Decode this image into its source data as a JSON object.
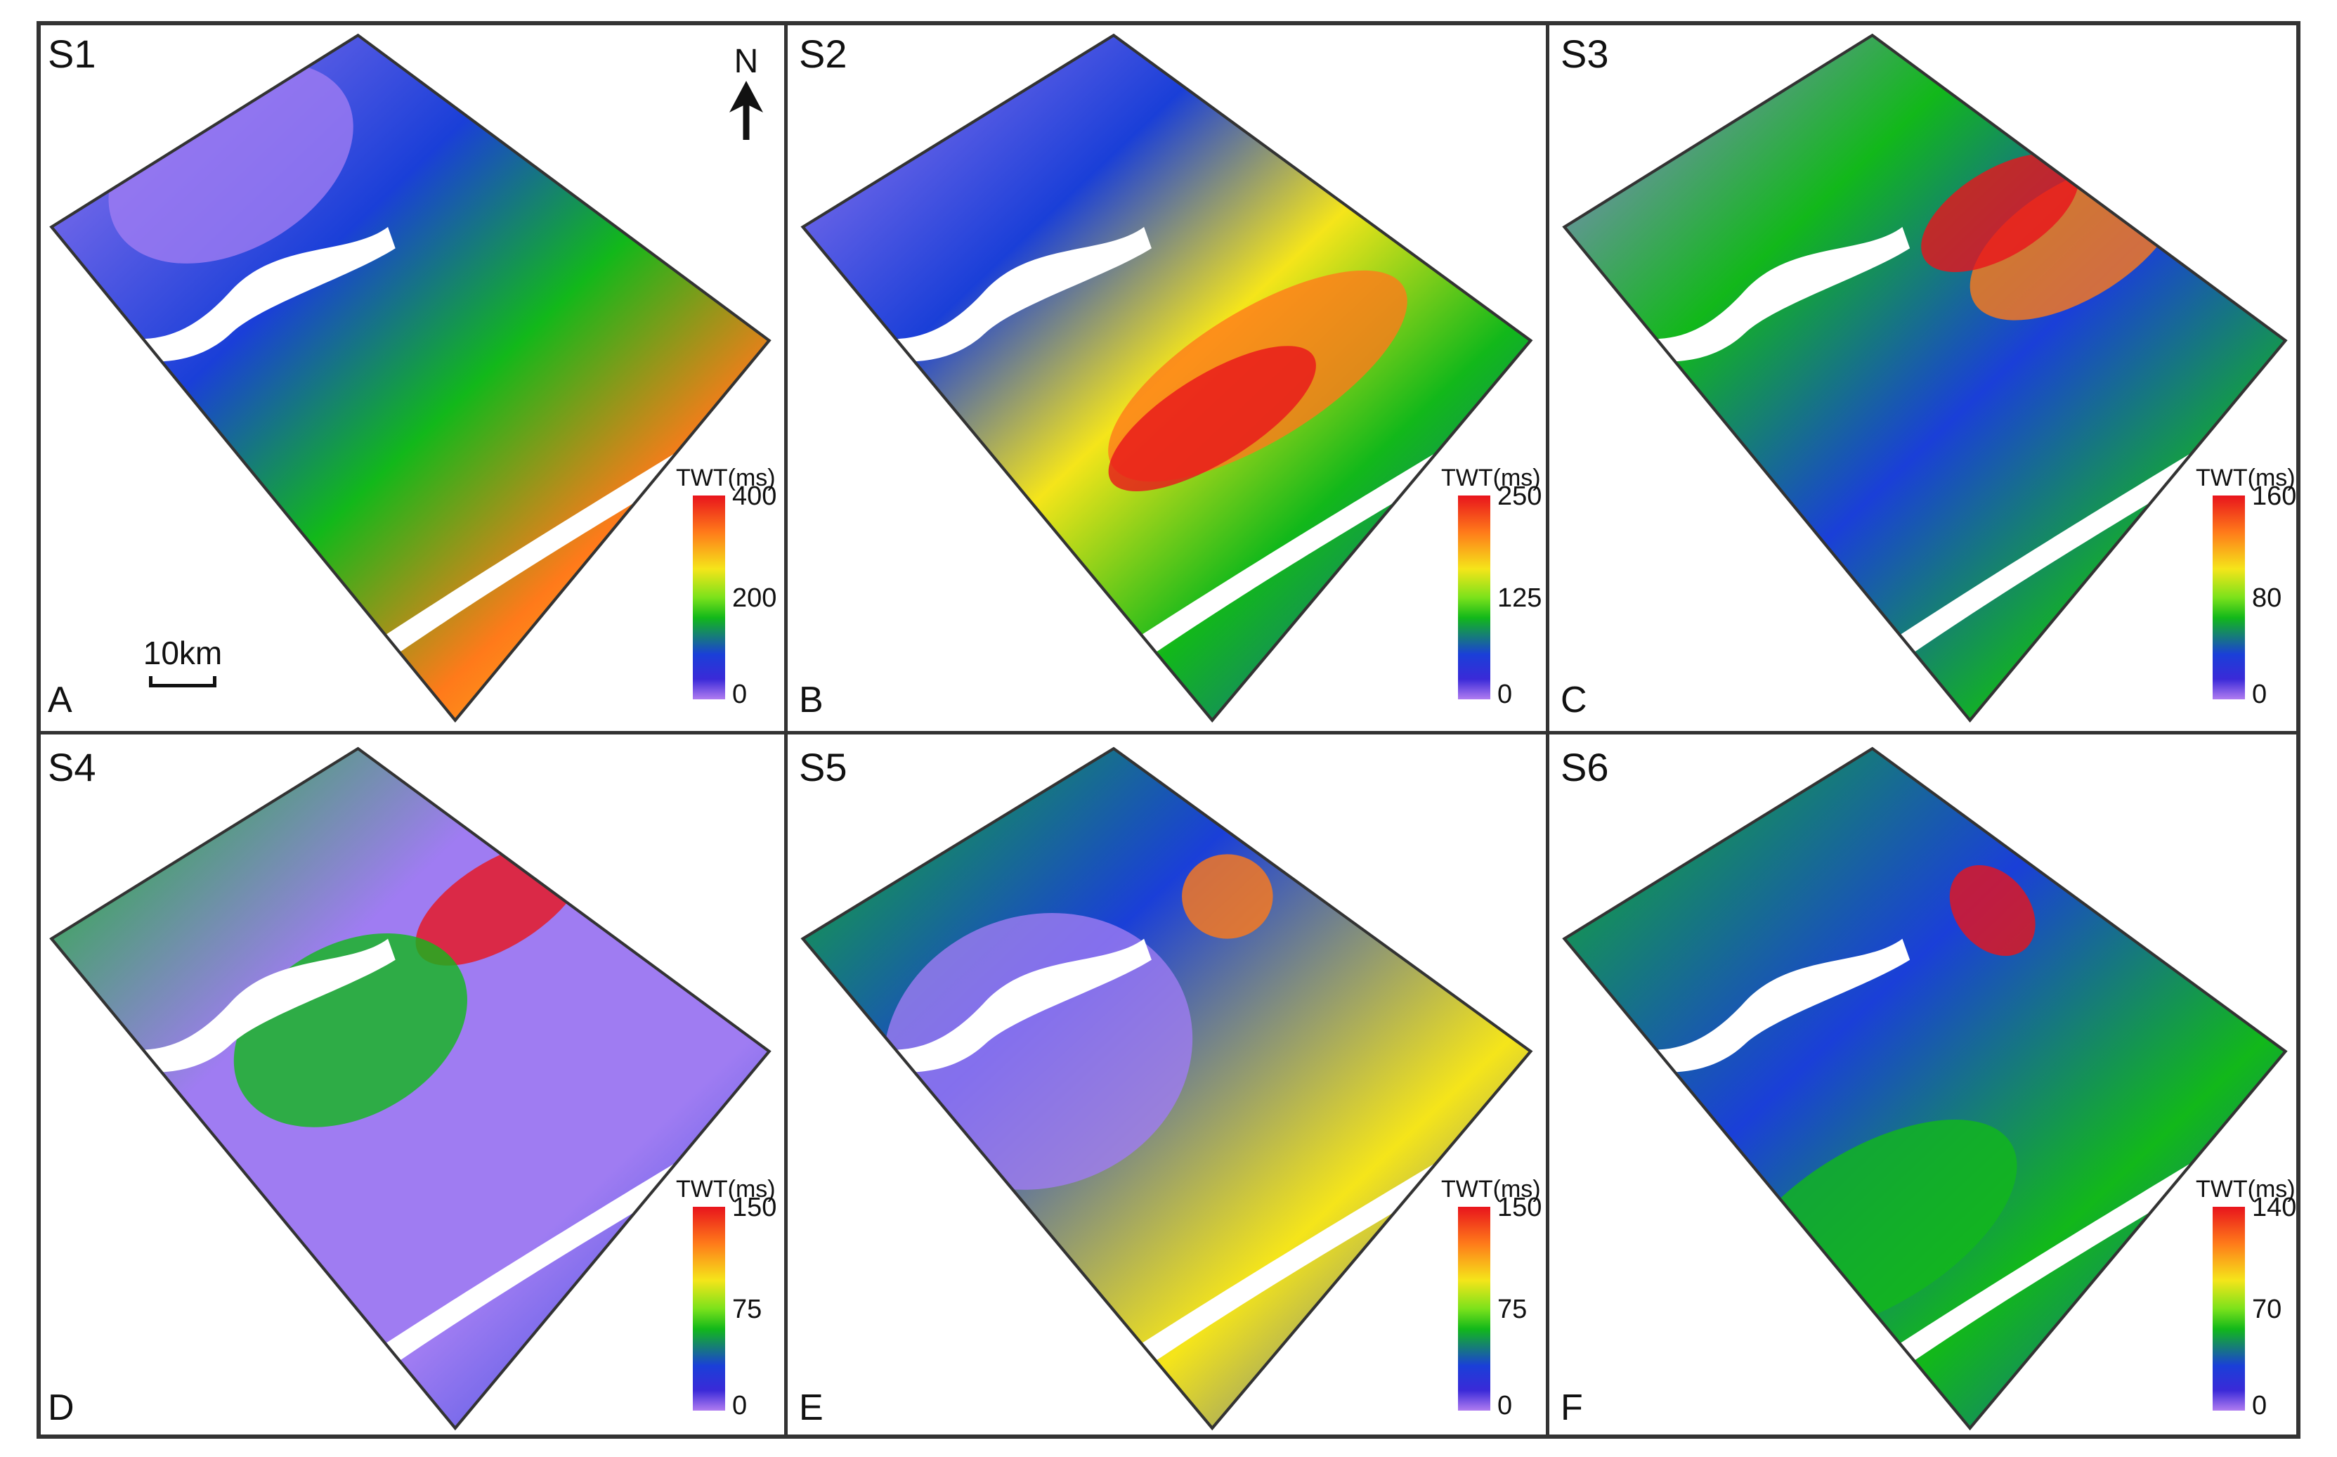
{
  "figure": {
    "north_label": "N",
    "scale_label": "10km",
    "colorbar_title": "TWT(ms)"
  },
  "panels": [
    {
      "title": "S1",
      "label": "A",
      "max": "400",
      "mid": "200",
      "min": "0"
    },
    {
      "title": "S2",
      "label": "B",
      "max": "250",
      "mid": "125",
      "min": "0"
    },
    {
      "title": "S3",
      "label": "C",
      "max": "160",
      "mid": "80",
      "min": "0"
    },
    {
      "title": "S4",
      "label": "D",
      "max": "150",
      "mid": "75",
      "min": "0"
    },
    {
      "title": "S5",
      "label": "E",
      "max": "150",
      "mid": "75",
      "min": "0"
    },
    {
      "title": "S6",
      "label": "F",
      "max": "140",
      "mid": "70",
      "min": "0"
    }
  ],
  "colors": {
    "red": "#e8141c",
    "orange": "#ff7a1a",
    "yellow": "#f5e51a",
    "green": "#12b81a",
    "blue": "#1a3fd8",
    "violet": "#9f7cf2",
    "frame": "#333333"
  }
}
